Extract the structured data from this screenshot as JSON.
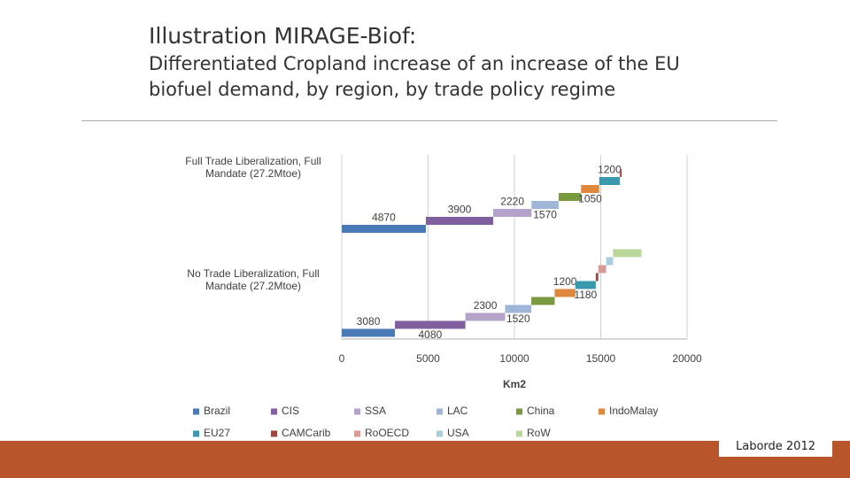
{
  "title": "Illustration MIRAGE-Biof:",
  "subtitle": [
    "Differentiated Cropland increase of an increase of the EU",
    "biofuel demand, by region, by trade policy regime"
  ],
  "source": "Laborde 2012",
  "chart_data": {
    "type": "waterfall",
    "orientation": "horizontal",
    "categories": [
      "Full Trade Liberalization, Full Mandate (27.2Mtoe)",
      "No Trade Liberalization, Full Mandate (27.2Mtoe)"
    ],
    "xlabel": "Km2",
    "xlim": [
      0,
      20000
    ],
    "xticks": [
      0,
      5000,
      10000,
      15000,
      20000
    ],
    "grid": true,
    "series": [
      {
        "name": "Brazil",
        "color": "#4a7ab5",
        "values": [
          4870,
          3080
        ],
        "value_labels": [
          "4870",
          "3080"
        ]
      },
      {
        "name": "CIS",
        "color": "#7f5f9e",
        "values": [
          3900,
          4080
        ],
        "value_labels": [
          "3900",
          "4080"
        ]
      },
      {
        "name": "SSA",
        "color": "#b3a3cb",
        "values": [
          2220,
          2300
        ],
        "value_labels": [
          "2220",
          "2300"
        ]
      },
      {
        "name": "LAC",
        "color": "#9fb6d9",
        "values": [
          1570,
          1520
        ],
        "value_labels": [
          "1570",
          "1520"
        ]
      },
      {
        "name": "China",
        "color": "#7a9a3e",
        "values": [
          1300,
          1350
        ]
      },
      {
        "name": "IndoMalay",
        "color": "#e0873e",
        "values": [
          1050,
          1200
        ],
        "value_labels": [
          "1050",
          "1200"
        ]
      },
      {
        "name": "EU27",
        "color": "#3a99ad",
        "values": [
          1200,
          1180
        ],
        "value_labels": [
          "1200",
          "1180"
        ]
      },
      {
        "name": "CAMCarib",
        "color": "#a0453f",
        "values": [
          100,
          150
        ]
      },
      {
        "name": "RoOECD",
        "color": "#d99a96",
        "values": [
          null,
          450
        ]
      },
      {
        "name": "USA",
        "color": "#a6cde0",
        "values": [
          null,
          400
        ]
      },
      {
        "name": "RoW",
        "color": "#bcd79c",
        "values": [
          null,
          1650
        ]
      }
    ]
  }
}
